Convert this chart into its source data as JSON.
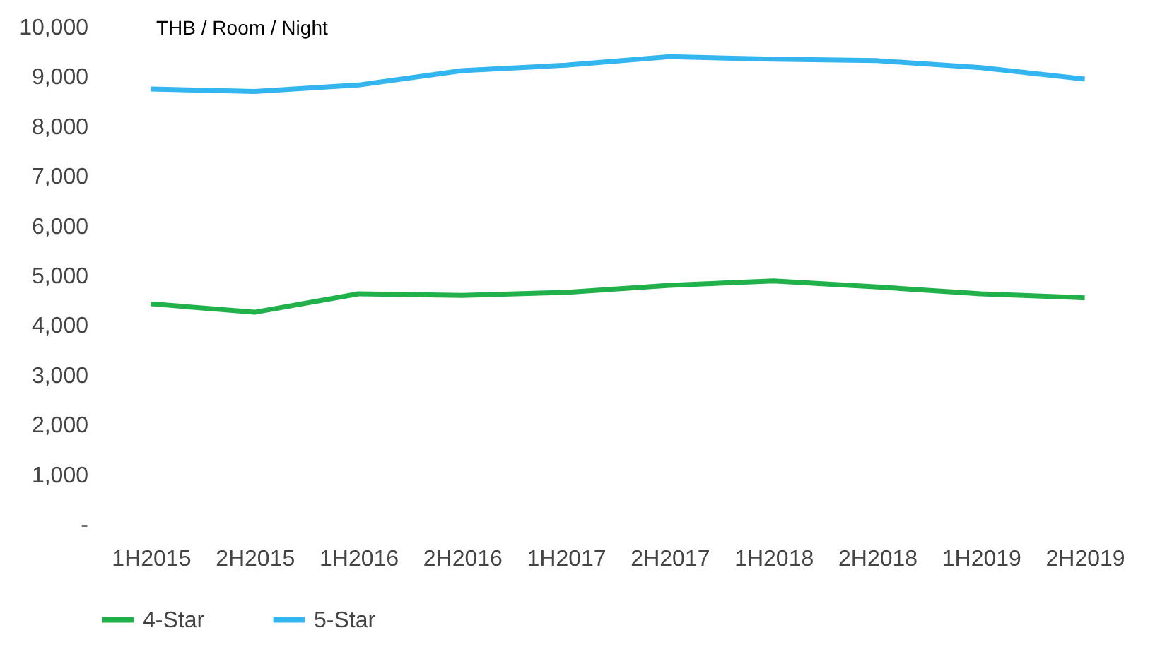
{
  "chart_data": {
    "type": "line",
    "ylabel": "THB / Room /  Night",
    "categories": [
      "1H2015",
      "2H2015",
      "1H2016",
      "2H2016",
      "1H2017",
      "2H2017",
      "1H2018",
      "2H2018",
      "1H2019",
      "2H2019"
    ],
    "series": [
      {
        "name": "4-Star",
        "color": "#21b14b",
        "values": [
          4430,
          4260,
          4630,
          4600,
          4660,
          4800,
          4890,
          4770,
          4630,
          4550
        ]
      },
      {
        "name": "5-Star",
        "color": "#33b5f0",
        "values": [
          8750,
          8700,
          8830,
          9120,
          9230,
          9400,
          9350,
          9320,
          9180,
          8950
        ]
      }
    ],
    "ylim": [
      0,
      10000
    ],
    "yticks": [
      {
        "value": 0,
        "label": "-"
      },
      {
        "value": 1000,
        "label": "1,000"
      },
      {
        "value": 2000,
        "label": "2,000"
      },
      {
        "value": 3000,
        "label": "3,000"
      },
      {
        "value": 4000,
        "label": "4,000"
      },
      {
        "value": 5000,
        "label": "5,000"
      },
      {
        "value": 6000,
        "label": "6,000"
      },
      {
        "value": 7000,
        "label": "7,000"
      },
      {
        "value": 8000,
        "label": "8,000"
      },
      {
        "value": 9000,
        "label": "9,000"
      },
      {
        "value": 10000,
        "label": "10,000"
      }
    ],
    "grid": false,
    "legend": "bottom",
    "marker": "none",
    "line_style": "solid"
  }
}
